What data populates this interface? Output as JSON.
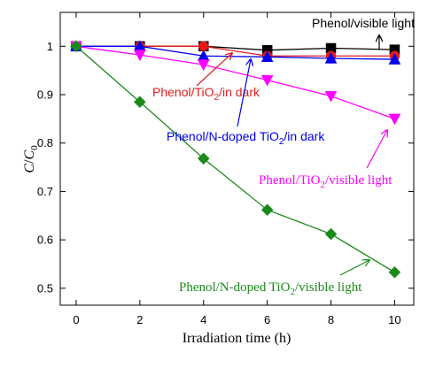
{
  "chart_data": {
    "type": "line",
    "xlabel": "Irradiation time (h)",
    "ylabel_main": "C",
    "ylabel_sep": "/",
    "ylabel_c0": "C",
    "ylabel_sub": "0",
    "x_ticks": [
      "0",
      "2",
      "4",
      "6",
      "8",
      "10"
    ],
    "y_ticks": [
      "0.5",
      "0.6",
      "0.7",
      "0.8",
      "0.9",
      "1"
    ],
    "xlim": [
      -0.5,
      10.6
    ],
    "ylim": [
      0.465,
      1.07
    ],
    "series": [
      {
        "name": "Phenol/visible light",
        "marker": "square",
        "color": "#000000",
        "x": [
          0,
          2,
          4,
          6,
          8,
          10
        ],
        "values": [
          1.0,
          1.0,
          1.0,
          0.992,
          0.996,
          0.993
        ]
      },
      {
        "name": "Phenol/TiO2/in dark",
        "marker": "circle",
        "color": "#e31a1c",
        "x": [
          0,
          2,
          4,
          6,
          8,
          10
        ],
        "values": [
          1.0,
          1.0,
          1.0,
          0.98,
          0.98,
          0.98
        ]
      },
      {
        "name": "Phenol/N-doped TiO2/in dark",
        "marker": "triangle-up",
        "color": "#0000ee",
        "x": [
          0,
          2,
          4,
          6,
          8,
          10
        ],
        "values": [
          1.0,
          1.0,
          0.98,
          0.978,
          0.975,
          0.973
        ]
      },
      {
        "name": "Phenol/TiO2/visible light",
        "marker": "triangle-down",
        "color": "#ff00ff",
        "x": [
          0,
          2,
          4,
          6,
          8,
          10
        ],
        "values": [
          1.0,
          0.982,
          0.962,
          0.93,
          0.897,
          0.85
        ]
      },
      {
        "name": "Phenol/N-doped TiO2/visible light",
        "marker": "diamond",
        "color": "#1a8a1a",
        "x": [
          0,
          2,
          4,
          6,
          8,
          10
        ],
        "values": [
          1.0,
          0.885,
          0.768,
          0.662,
          0.612,
          0.533
        ]
      }
    ],
    "annotations": [
      {
        "pre": "Phenol/visible light",
        "sub": "",
        "post": "",
        "color": "#000000"
      },
      {
        "pre": "Phenol/TiO",
        "sub": "2",
        "post": "/in dark",
        "color": "#e31a1c"
      },
      {
        "pre": "Phenol/N-doped TiO",
        "sub": "2",
        "post": "/in dark",
        "color": "#0000ee"
      },
      {
        "pre": "Phenol/TiO",
        "sub": "2",
        "post": "/visible light",
        "color": "#ff00ff"
      },
      {
        "pre": "Phenol/N-doped TiO",
        "sub": "2",
        "post": "/visible light",
        "color": "#1a8a1a"
      }
    ]
  }
}
